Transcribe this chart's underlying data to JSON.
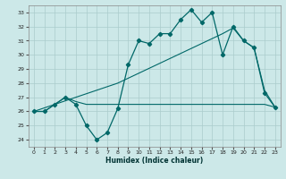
{
  "xlabel": "Humidex (Indice chaleur)",
  "background_color": "#cce8e8",
  "grid_color": "#aacccc",
  "line_color": "#006868",
  "xlim": [
    -0.5,
    23.5
  ],
  "ylim": [
    23.5,
    33.5
  ],
  "xticks": [
    0,
    1,
    2,
    3,
    4,
    5,
    6,
    7,
    8,
    9,
    10,
    11,
    12,
    13,
    14,
    15,
    16,
    17,
    18,
    19,
    20,
    21,
    22,
    23
  ],
  "yticks": [
    24,
    25,
    26,
    27,
    28,
    29,
    30,
    31,
    32,
    33
  ],
  "line_jagged_x": [
    0,
    1,
    2,
    3,
    4,
    5,
    6,
    7,
    8,
    9,
    10,
    11,
    12,
    13,
    14,
    15,
    16,
    17,
    18,
    19,
    20,
    21,
    22,
    23
  ],
  "line_jagged_y": [
    26.0,
    26.0,
    26.5,
    27.0,
    26.5,
    25.0,
    24.0,
    24.5,
    26.2,
    29.3,
    31.0,
    30.8,
    31.5,
    31.5,
    32.5,
    33.2,
    32.3,
    33.0,
    30.0,
    32.0,
    31.0,
    30.5,
    27.3,
    26.3
  ],
  "line_diag_x": [
    0,
    1,
    2,
    3,
    4,
    5,
    6,
    7,
    8,
    9,
    10,
    11,
    12,
    13,
    14,
    15,
    16,
    17,
    18,
    19,
    20,
    21,
    22,
    23
  ],
  "line_diag_y": [
    26.0,
    26.25,
    26.5,
    26.75,
    27.0,
    27.25,
    27.5,
    27.75,
    28.0,
    28.35,
    28.7,
    29.05,
    29.4,
    29.75,
    30.1,
    30.45,
    30.8,
    31.15,
    31.5,
    31.9,
    31.0,
    30.5,
    27.5,
    26.3
  ],
  "line_flat_x": [
    0,
    1,
    2,
    3,
    4,
    5,
    6,
    7,
    8,
    9,
    10,
    11,
    12,
    13,
    14,
    15,
    16,
    17,
    18,
    19,
    20,
    21,
    22,
    23
  ],
  "line_flat_y": [
    26.0,
    26.0,
    26.5,
    27.0,
    26.7,
    26.5,
    26.5,
    26.5,
    26.5,
    26.5,
    26.5,
    26.5,
    26.5,
    26.5,
    26.5,
    26.5,
    26.5,
    26.5,
    26.5,
    26.5,
    26.5,
    26.5,
    26.5,
    26.3
  ]
}
